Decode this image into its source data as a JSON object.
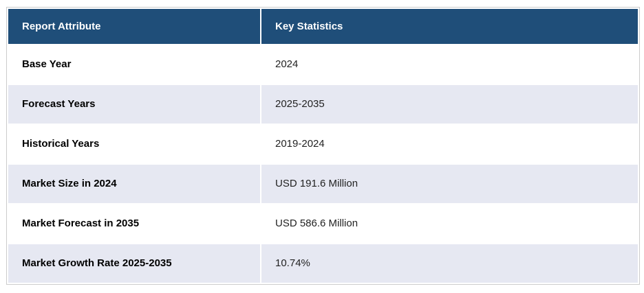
{
  "table": {
    "columns": [
      {
        "label": "Report Attribute"
      },
      {
        "label": "Key Statistics"
      }
    ],
    "rows": [
      {
        "attribute": "Base Year",
        "value": "2024"
      },
      {
        "attribute": "Forecast Years",
        "value": "2025-2035"
      },
      {
        "attribute": "Historical Years",
        "value": "2019-2024"
      },
      {
        "attribute": "Market Size in 2024",
        "value": "USD 191.6 Million"
      },
      {
        "attribute": "Market Forecast in 2035",
        "value": "USD 586.6 Million"
      },
      {
        "attribute": "Market Growth Rate 2025-2035",
        "value": "10.74%"
      }
    ],
    "colors": {
      "header_bg": "#1f4e79",
      "header_text": "#ffffff",
      "row_bg": "#ffffff",
      "row_alt_bg": "#e6e8f2",
      "outer_border": "#cccccc",
      "attribute_text": "#000000",
      "value_text": "#222222"
    }
  }
}
